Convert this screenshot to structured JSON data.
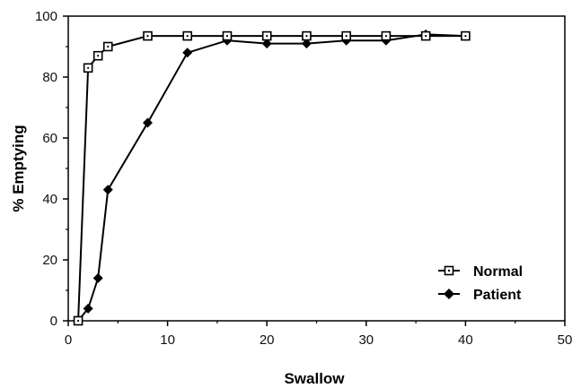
{
  "chart_data": {
    "type": "line",
    "title": "",
    "xlabel": "Swallow",
    "ylabel": "% Emptying",
    "xlim": [
      0,
      50
    ],
    "ylim": [
      0,
      100
    ],
    "x_ticks": [
      0,
      10,
      20,
      30,
      40,
      50
    ],
    "y_ticks": [
      0,
      20,
      40,
      60,
      80,
      100
    ],
    "grid": false,
    "legend_position": "bottom-right",
    "series": [
      {
        "name": "Normal",
        "marker": "open-square",
        "color": "#000000",
        "x": [
          1,
          2,
          3,
          4,
          8,
          12,
          16,
          20,
          24,
          28,
          32,
          36,
          40
        ],
        "y": [
          0,
          83,
          87,
          90,
          93.5,
          93.5,
          93.5,
          93.5,
          93.5,
          93.5,
          93.5,
          93.5,
          93.5
        ]
      },
      {
        "name": "Patient",
        "marker": "filled-diamond",
        "color": "#000000",
        "x": [
          1,
          2,
          3,
          4,
          8,
          12,
          16,
          20,
          24,
          28,
          32,
          36,
          40
        ],
        "y": [
          0,
          4,
          14,
          43,
          65,
          88,
          92,
          91,
          91,
          92,
          92,
          94,
          93.5
        ]
      }
    ]
  }
}
